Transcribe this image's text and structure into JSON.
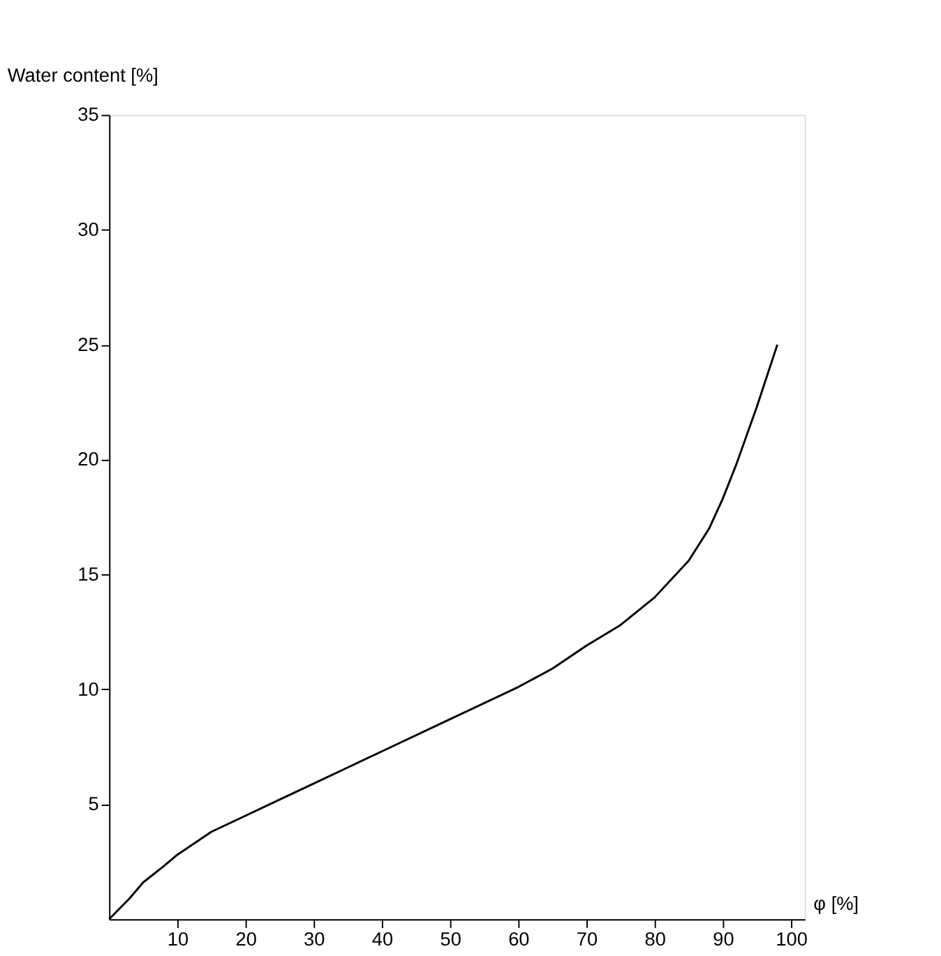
{
  "chart_data": {
    "type": "line",
    "xlabel": "φ [%]",
    "ylabel": "Water content [%]",
    "x": [
      0,
      3,
      5,
      8,
      10,
      15,
      20,
      25,
      30,
      40,
      50,
      60,
      65,
      70,
      75,
      80,
      85,
      88,
      90,
      92,
      95,
      98
    ],
    "series": [
      {
        "color": "#000000",
        "values": [
          0,
          0.9,
          1.6,
          2.3,
          2.8,
          3.8,
          4.5,
          5.2,
          5.9,
          7.3,
          8.7,
          10.1,
          10.9,
          11.9,
          12.8,
          14.0,
          15.6,
          17.0,
          18.3,
          19.8,
          22.3,
          25.0
        ]
      }
    ],
    "xlim": [
      0,
      102
    ],
    "ylim": [
      0,
      35
    ],
    "xticks": [
      10,
      20,
      30,
      40,
      50,
      60,
      70,
      80,
      90,
      100
    ],
    "yticks": [
      5,
      10,
      15,
      20,
      25,
      30,
      35
    ],
    "grid": false,
    "legend": false,
    "marker": "none",
    "line_style": "solid"
  }
}
